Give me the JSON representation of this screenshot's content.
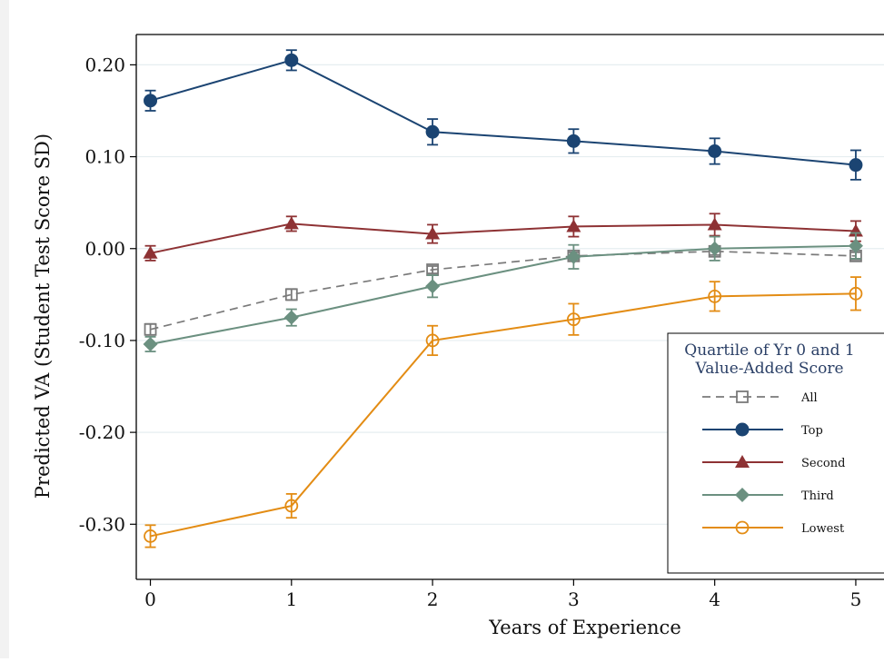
{
  "chart_data": {
    "type": "line",
    "title": "",
    "xlabel": "Years of Experience",
    "ylabel": "Predicted VA (Student Test Score SD)",
    "x": [
      0,
      1,
      2,
      3,
      4,
      5
    ],
    "x_ticks": [
      "0",
      "1",
      "2",
      "3",
      "4",
      "5"
    ],
    "y_ticks": [
      {
        "value": 0.2,
        "label": "0.20"
      },
      {
        "value": 0.1,
        "label": "0.10"
      },
      {
        "value": 0.0,
        "label": "0.00"
      },
      {
        "value": -0.1,
        "label": "-0.10"
      },
      {
        "value": -0.2,
        "label": "-0.20"
      },
      {
        "value": -0.3,
        "label": "-0.30"
      }
    ],
    "xlim": [
      -0.1,
      5.2
    ],
    "ylim": [
      -0.36,
      0.233
    ],
    "grid": true,
    "legend_position": "bottom-right",
    "legend": {
      "title_line1": "Quartile of Yr 0 and 1",
      "title_line2": "Value-Added Score",
      "entries": [
        "All",
        "Top",
        "Second",
        "Third",
        "Lowest"
      ]
    },
    "series": [
      {
        "name": "All",
        "color": "#7a7a7a",
        "marker": "square-hollow",
        "dashed": true,
        "values": [
          -0.088,
          -0.05,
          -0.023,
          -0.008,
          -0.003,
          -0.008
        ],
        "err": [
          0.006,
          0.006,
          0.004,
          0.004,
          0.004,
          0.004
        ]
      },
      {
        "name": "Top",
        "color": "#1b4472",
        "marker": "circle",
        "dashed": false,
        "values": [
          0.161,
          0.205,
          0.127,
          0.117,
          0.106,
          0.091
        ],
        "err": [
          0.011,
          0.011,
          0.014,
          0.013,
          0.014,
          0.016
        ]
      },
      {
        "name": "Second",
        "color": "#8e3234",
        "marker": "triangle",
        "dashed": false,
        "values": [
          -0.005,
          0.027,
          0.016,
          0.024,
          0.026,
          0.019
        ],
        "err": [
          0.008,
          0.008,
          0.01,
          0.011,
          0.012,
          0.011
        ]
      },
      {
        "name": "Third",
        "color": "#6b9080",
        "marker": "diamond",
        "dashed": false,
        "values": [
          -0.104,
          -0.075,
          -0.041,
          -0.009,
          0.0,
          0.003
        ],
        "err": [
          0.008,
          0.009,
          0.012,
          0.013,
          0.013,
          0.014
        ]
      },
      {
        "name": "Lowest",
        "color": "#e38c14",
        "marker": "circle-hollow",
        "dashed": false,
        "values": [
          -0.313,
          -0.28,
          -0.1,
          -0.077,
          -0.052,
          -0.049
        ],
        "err": [
          0.012,
          0.013,
          0.016,
          0.017,
          0.016,
          0.018
        ]
      }
    ]
  }
}
